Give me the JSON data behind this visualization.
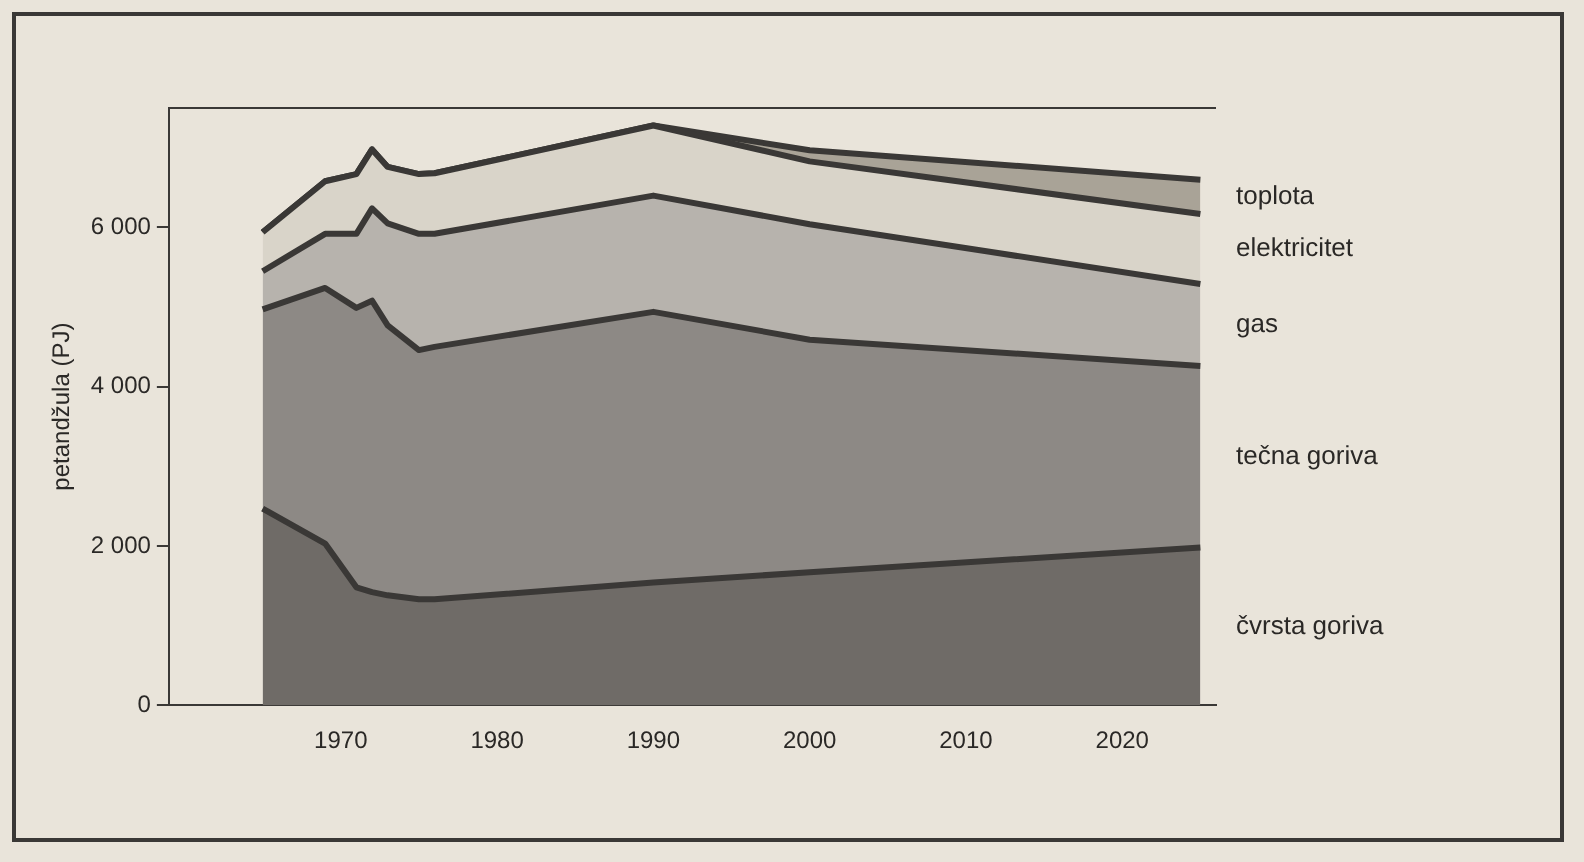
{
  "chart_data": {
    "type": "area",
    "stacked": true,
    "ylabel": "petandžula (PJ)",
    "x": [
      1965,
      1969,
      1971,
      1972,
      1973,
      1975,
      1976,
      1990,
      2000,
      2025
    ],
    "series": [
      {
        "name": "čvrsta goriva",
        "color": "#6f6b67",
        "values": [
          2470,
          2030,
          1480,
          1420,
          1380,
          1330,
          1330,
          1540,
          1670,
          1980
        ]
      },
      {
        "name": "tečna goriva",
        "color": "#8d8985",
        "values": [
          2500,
          3210,
          3510,
          3660,
          3390,
          3130,
          3170,
          3400,
          2920,
          2280
        ]
      },
      {
        "name": "gas",
        "color": "#b7b3ad",
        "values": [
          480,
          680,
          930,
          1160,
          1280,
          1460,
          1420,
          1460,
          1450,
          1030
        ]
      },
      {
        "name": "elektricitet",
        "color": "#d9d4c9",
        "values": [
          490,
          660,
          750,
          740,
          710,
          750,
          760,
          880,
          790,
          880
        ]
      },
      {
        "name": "toplota",
        "color": "#a9a397",
        "values": [
          0,
          0,
          0,
          0,
          0,
          0,
          0,
          0,
          140,
          430
        ]
      }
    ],
    "xlim": [
      1959,
      2026
    ],
    "xticks": [
      1970,
      1980,
      1990,
      2000,
      2010,
      2020
    ],
    "ylim": [
      0,
      7500
    ],
    "yticks": [
      0,
      {
        "value": 2000,
        "label": "2 000"
      },
      {
        "value": 4000,
        "label": "4 000"
      },
      {
        "value": 6000,
        "label": "6 000"
      }
    ],
    "grid": false,
    "legend": false
  }
}
